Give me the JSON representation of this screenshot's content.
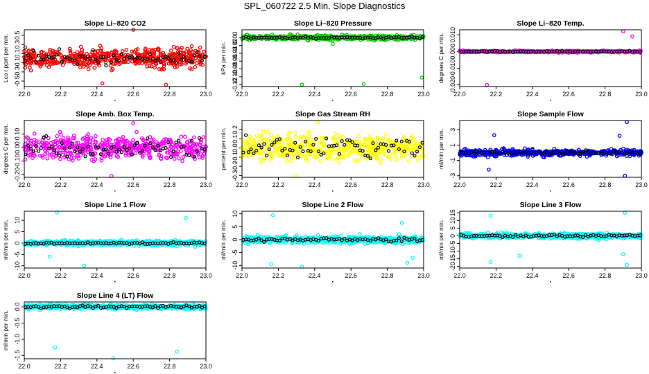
{
  "title": "SPL_060722  2.5 Min. Slope Diagnostics",
  "chart_data": [
    {
      "type": "scatter",
      "title": "Slope Li–820 CO2",
      "ylabel": "Lco r ppm per min.",
      "xlim": [
        22.0,
        23.0
      ],
      "ylim": [
        -0.62,
        0.62
      ],
      "xticks": [
        "22.0",
        "22.2",
        "22.4",
        "22.6",
        "22.8",
        "23.0"
      ],
      "yticks": [
        {
          "v": -0.5,
          "label": "-0.5"
        },
        {
          "v": -0.3,
          "label": "-0.3"
        },
        {
          "v": -0.1,
          "label": "-0.1"
        },
        {
          "v": 0.1,
          "label": "0.1"
        },
        {
          "v": 0.3,
          "label": "0.3"
        },
        {
          "v": 0.5,
          "label": "0.5"
        }
      ],
      "color": "#ff0000",
      "spread": 0.14,
      "outliers": [
        {
          "x": 22.6,
          "y": 0.62
        },
        {
          "x": 22.78,
          "y": -0.58
        },
        {
          "x": 22.43,
          "y": -0.55
        }
      ],
      "black_spread": 0.1
    },
    {
      "type": "scatter",
      "title": "Slope Li–820 Pressure",
      "ylabel": "kPa per min.",
      "xlim": [
        22.0,
        23.0
      ],
      "ylim": [
        -0.125,
        0.02
      ],
      "xticks": [
        "22.0",
        "22.2",
        "22.4",
        "22.6",
        "22.8",
        "23.0"
      ],
      "yticks": [
        {
          "v": -0.12,
          "label": "-0.12"
        },
        {
          "v": -0.1,
          "label": "-0.10"
        },
        {
          "v": -0.08,
          "label": "-0.08"
        },
        {
          "v": -0.06,
          "label": "-0.06"
        },
        {
          "v": -0.04,
          "label": "-0.04"
        },
        {
          "v": -0.02,
          "label": "-0.02"
        },
        {
          "v": 0.0,
          "label": "0.00"
        }
      ],
      "color": "#00cc00",
      "spread": 0.004,
      "outliers": [
        {
          "x": 22.33,
          "y": -0.12
        },
        {
          "x": 22.67,
          "y": -0.118
        },
        {
          "x": 22.99,
          "y": -0.102
        },
        {
          "x": 22.5,
          "y": -0.016
        }
      ],
      "black_spread": 0.002
    },
    {
      "type": "scatter",
      "title": "Slope Li–820 Temp.",
      "ylabel": "degrees C per min.",
      "xlim": [
        22.0,
        23.0
      ],
      "ylim": [
        -0.021,
        0.013
      ],
      "xticks": [
        "22.0",
        "22.2",
        "22.4",
        "22.6",
        "22.8",
        "23.0"
      ],
      "yticks": [
        {
          "v": -0.02,
          "label": "-0.020"
        },
        {
          "v": -0.01,
          "label": "-0.010"
        },
        {
          "v": 0.0,
          "label": "0.000"
        },
        {
          "v": 0.01,
          "label": "0.010"
        }
      ],
      "color": "#ff00ff",
      "spread": 0.0004,
      "outliers": [
        {
          "x": 22.15,
          "y": -0.02
        },
        {
          "x": 22.9,
          "y": 0.012
        },
        {
          "x": 22.95,
          "y": 0.009
        }
      ],
      "black_spread": 0.0003
    },
    {
      "type": "scatter",
      "title": "Slope Amb. Box Temp.",
      "ylabel": "degrees C per min.",
      "xlim": [
        22.0,
        23.0
      ],
      "ylim": [
        -0.22,
        0.2
      ],
      "xticks": [
        "22.0",
        "22.2",
        "22.4",
        "22.6",
        "22.8",
        "23.0"
      ],
      "yticks": [
        {
          "v": -0.2,
          "label": "-0.20"
        },
        {
          "v": -0.1,
          "label": "-0.10"
        },
        {
          "v": 0.0,
          "label": "0.00"
        },
        {
          "v": 0.1,
          "label": "0.10"
        }
      ],
      "color": "#ff00ff",
      "spread": 0.06,
      "outliers": [
        {
          "x": 22.6,
          "y": 0.18
        },
        {
          "x": 22.48,
          "y": -0.21
        }
      ],
      "black_spread": 0.05
    },
    {
      "type": "scatter",
      "title": "Slope Gas Stream RH",
      "ylabel": "percent per min.",
      "xlim": [
        22.0,
        23.0
      ],
      "ylim": [
        -0.32,
        0.3
      ],
      "xticks": [
        "22.0",
        "22.2",
        "22.4",
        "22.6",
        "22.8",
        "23.0"
      ],
      "yticks": [
        {
          "v": -0.3,
          "label": "-0.3"
        },
        {
          "v": -0.2,
          "label": "-0.2"
        },
        {
          "v": -0.1,
          "label": "-0.1"
        },
        {
          "v": 0.0,
          "label": "0.0"
        },
        {
          "v": 0.1,
          "label": "0.1"
        },
        {
          "v": 0.2,
          "label": "0.2"
        }
      ],
      "color": "#ffff00",
      "spread": 0.1,
      "outliers": [
        {
          "x": 22.42,
          "y": 0.28
        },
        {
          "x": 22.3,
          "y": -0.3
        }
      ],
      "black_spread": 0.08
    },
    {
      "type": "scatter",
      "title": "Slope Sample Flow",
      "ylabel": "ml/min per min.",
      "xlim": [
        22.0,
        23.0
      ],
      "ylim": [
        -3.2,
        4.2
      ],
      "xticks": [
        "22.0",
        "22.2",
        "22.4",
        "22.6",
        "22.8",
        "23.0"
      ],
      "yticks": [
        {
          "v": -3,
          "label": "-3"
        },
        {
          "v": -1,
          "label": "-1"
        },
        {
          "v": 1,
          "label": "1"
        },
        {
          "v": 3,
          "label": "3"
        }
      ],
      "color": "#0000ff",
      "spread": 0.3,
      "outliers": [
        {
          "x": 22.16,
          "y": -2.2
        },
        {
          "x": 22.19,
          "y": 2.3
        },
        {
          "x": 22.92,
          "y": 4.0
        },
        {
          "x": 22.91,
          "y": -3.0
        },
        {
          "x": 22.88,
          "y": 2.2
        }
      ],
      "black_spread": 0.15
    },
    {
      "type": "scatter",
      "title": "Slope Line 1 Flow",
      "ylabel": "ml/min per min.",
      "xlim": [
        22.0,
        23.0
      ],
      "ylim": [
        -11,
        14
      ],
      "xticks": [
        "22.0",
        "22.2",
        "22.4",
        "22.6",
        "22.8",
        "23.0"
      ],
      "yticks": [
        {
          "v": -10,
          "label": "-10"
        },
        {
          "v": -5,
          "label": "-5"
        },
        {
          "v": 0,
          "label": "0"
        },
        {
          "v": 5,
          "label": "5"
        },
        {
          "v": 10,
          "label": "10"
        }
      ],
      "color": "#00ffff",
      "spread": 0.8,
      "outliers": [
        {
          "x": 22.18,
          "y": 13.5
        },
        {
          "x": 22.33,
          "y": -10
        },
        {
          "x": 22.89,
          "y": 11
        },
        {
          "x": 22.14,
          "y": -6
        }
      ],
      "black_spread": 0.3
    },
    {
      "type": "scatter",
      "title": "Slope Line 2 Flow",
      "ylabel": "ml/min per min.",
      "xlim": [
        22.0,
        23.0
      ],
      "ylim": [
        -11,
        11
      ],
      "xticks": [
        "22.0",
        "22.2",
        "22.4",
        "22.6",
        "22.8",
        "23.0"
      ],
      "yticks": [
        {
          "v": -10,
          "label": "-10"
        },
        {
          "v": -5,
          "label": "-5"
        },
        {
          "v": 0,
          "label": "0"
        },
        {
          "v": 5,
          "label": "5"
        },
        {
          "v": 10,
          "label": "10"
        }
      ],
      "color": "#00ffff",
      "spread": 1.0,
      "outliers": [
        {
          "x": 22.17,
          "y": 9.5
        },
        {
          "x": 22.33,
          "y": -10.5
        },
        {
          "x": 22.91,
          "y": -9
        },
        {
          "x": 22.94,
          "y": -7
        },
        {
          "x": 22.88,
          "y": 6.5
        },
        {
          "x": 22.16,
          "y": -9.5
        }
      ],
      "black_spread": 0.5
    },
    {
      "type": "scatter",
      "title": "Slope Line 3 Flow",
      "ylabel": "ml/min per min.",
      "xlim": [
        22.0,
        23.0
      ],
      "ylim": [
        -21,
        16
      ],
      "xticks": [
        "22.0",
        "22.2",
        "22.4",
        "22.6",
        "22.8",
        "23.0"
      ],
      "yticks": [
        {
          "v": -20,
          "label": "-20"
        },
        {
          "v": -15,
          "label": "-15"
        },
        {
          "v": -10,
          "label": "-10"
        },
        {
          "v": -5,
          "label": "-5"
        },
        {
          "v": 0,
          "label": "0"
        },
        {
          "v": 5,
          "label": "5"
        },
        {
          "v": 10,
          "label": "10"
        },
        {
          "v": 15,
          "label": "15"
        }
      ],
      "color": "#00ffff",
      "spread": 1.2,
      "outliers": [
        {
          "x": 22.17,
          "y": 13
        },
        {
          "x": 22.17,
          "y": -17
        },
        {
          "x": 22.33,
          "y": -13
        },
        {
          "x": 22.91,
          "y": 15
        },
        {
          "x": 22.92,
          "y": -19
        },
        {
          "x": 22.9,
          "y": -12
        }
      ],
      "black_spread": 0.6
    },
    {
      "type": "scatter",
      "title": "Slope Line 4 (LT) Flow",
      "ylabel": "ml/min per min.",
      "xlim": [
        22.0,
        23.0
      ],
      "ylim": [
        -1.6,
        0.15
      ],
      "xticks": [
        "22.0",
        "22.2",
        "22.4",
        "22.6",
        "22.8",
        "23.0"
      ],
      "yticks": [
        {
          "v": -1.5,
          "label": "-1.5"
        },
        {
          "v": -1.0,
          "label": "-1.0"
        },
        {
          "v": -0.5,
          "label": "-0.5"
        },
        {
          "v": 0.0,
          "label": "0.0"
        }
      ],
      "color": "#00ffff",
      "spread": 0.05,
      "outliers": [
        {
          "x": 22.17,
          "y": -1.25
        },
        {
          "x": 22.49,
          "y": -1.58
        },
        {
          "x": 22.84,
          "y": -1.38
        }
      ],
      "black_spread": 0.03
    }
  ]
}
